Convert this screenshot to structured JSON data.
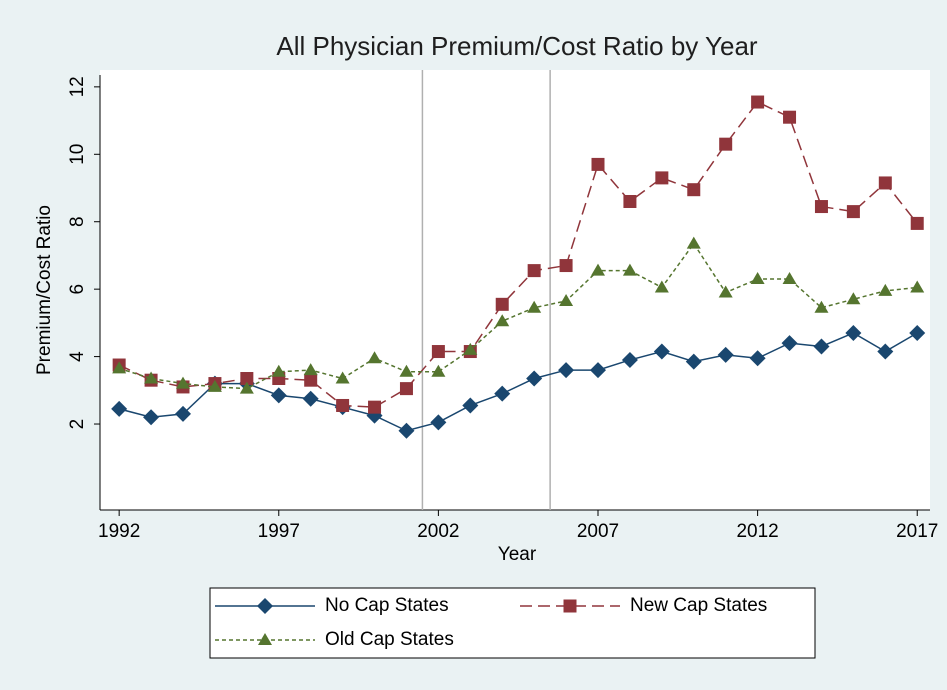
{
  "chart_data": {
    "type": "line",
    "title": "All Physician Premium/Cost Ratio by Year",
    "x_label": "Year",
    "y_label": "Premium/Cost Ratio",
    "x": [
      1992,
      1993,
      1994,
      1995,
      1996,
      1997,
      1998,
      1999,
      2000,
      2001,
      2002,
      2003,
      2004,
      2005,
      2006,
      2007,
      2008,
      2009,
      2010,
      2011,
      2012,
      2013,
      2014,
      2015,
      2016,
      2017
    ],
    "series": [
      {
        "name": "No Cap States",
        "color": "#1a476f",
        "marker": "diamond",
        "dash": "solid",
        "values": [
          2.45,
          2.2,
          2.3,
          3.2,
          3.2,
          2.85,
          2.75,
          2.5,
          2.25,
          1.8,
          2.05,
          2.55,
          2.9,
          3.35,
          3.6,
          3.6,
          3.9,
          4.15,
          3.85,
          4.05,
          3.95,
          4.4,
          4.3,
          4.7,
          4.15,
          4.7
        ]
      },
      {
        "name": "New Cap States",
        "color": "#90353b",
        "marker": "square",
        "dash": "long",
        "values": [
          3.75,
          3.3,
          3.1,
          3.2,
          3.35,
          3.35,
          3.3,
          2.55,
          2.5,
          3.05,
          4.15,
          4.15,
          5.55,
          6.55,
          6.7,
          9.7,
          8.6,
          9.3,
          8.95,
          10.3,
          11.55,
          11.1,
          8.45,
          8.3,
          9.15,
          7.95
        ]
      },
      {
        "name": "Old Cap States",
        "color": "#55752f",
        "marker": "triangle",
        "dash": "short",
        "values": [
          3.65,
          3.35,
          3.2,
          3.1,
          3.05,
          3.55,
          3.6,
          3.35,
          3.95,
          3.55,
          3.55,
          4.2,
          5.05,
          5.45,
          5.65,
          6.55,
          6.55,
          6.05,
          7.35,
          5.9,
          6.3,
          6.3,
          5.45,
          5.7,
          5.95,
          6.05
        ]
      }
    ],
    "xlim": [
      1991.4,
      2017.4
    ],
    "xticks": [
      1992,
      1997,
      2002,
      2007,
      2012,
      2017
    ],
    "ylim": [
      -0.55,
      12.5
    ],
    "yticks": [
      2,
      4,
      6,
      8,
      10,
      12
    ],
    "xlines": [
      2001.5,
      2005.5
    ],
    "xline_color": "#b0b0b0"
  }
}
